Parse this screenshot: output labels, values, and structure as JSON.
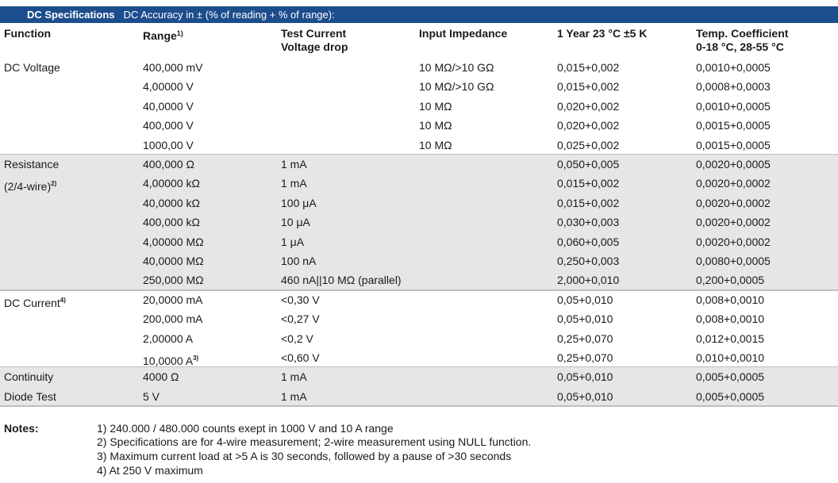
{
  "title": {
    "main": "DC Specifications",
    "subtitle": "DC Accuracy in ± (% of reading + % of range):"
  },
  "headers": {
    "function": "Function",
    "range": "Range",
    "range_sup": "1)",
    "test_current_line1": "Test Current",
    "test_current_line2": "Voltage drop",
    "input_impedance": "Input Impedance",
    "one_year": "1 Year 23 °C ±5 K",
    "temp_line1": "Temp. Coefficient",
    "temp_line2": "0-18 °C, 28-55 °C"
  },
  "groups": [
    {
      "shaded": false,
      "rows": [
        {
          "function": "DC Voltage",
          "fsup": "",
          "range": "400,000 mV",
          "rsup": "",
          "test": "",
          "impedance": "10 MΩ/>10 GΩ",
          "year": "0,015+0,002",
          "temp": "0,0010+0,0005"
        },
        {
          "function": "",
          "fsup": "",
          "range": "4,00000 V",
          "rsup": "",
          "test": "",
          "impedance": "10 MΩ/>10 GΩ",
          "year": "0,015+0,002",
          "temp": "0,0008+0,0003"
        },
        {
          "function": "",
          "fsup": "",
          "range": "40,0000 V",
          "rsup": "",
          "test": "",
          "impedance": "10 MΩ",
          "year": "0,020+0,002",
          "temp": "0,0010+0,0005"
        },
        {
          "function": "",
          "fsup": "",
          "range": "400,000 V",
          "rsup": "",
          "test": "",
          "impedance": "10 MΩ",
          "year": "0,020+0,002",
          "temp": "0,0015+0,0005"
        },
        {
          "function": "",
          "fsup": "",
          "range": "1000,00 V",
          "rsup": "",
          "test": "",
          "impedance": "10 MΩ",
          "year": "0,025+0,002",
          "temp": "0,0015+0,0005"
        }
      ]
    },
    {
      "shaded": true,
      "rows": [
        {
          "function": "Resistance",
          "fsup": "",
          "range": "400,000 Ω",
          "rsup": "",
          "test": "1 mA",
          "impedance": "",
          "year": "0,050+0,005",
          "temp": "0,0020+0,0005"
        },
        {
          "function": "(2/4-wire)",
          "fsup": "2)",
          "range": "4,00000 kΩ",
          "rsup": "",
          "test": "1 mA",
          "impedance": "",
          "year": "0,015+0,002",
          "temp": "0,0020+0,0002"
        },
        {
          "function": "",
          "fsup": "",
          "range": "40,0000 kΩ",
          "rsup": "",
          "test": "100 μA",
          "impedance": "",
          "year": "0,015+0,002",
          "temp": "0,0020+0,0002"
        },
        {
          "function": "",
          "fsup": "",
          "range": "400,000 kΩ",
          "rsup": "",
          "test": "10 μA",
          "impedance": "",
          "year": "0,030+0,003",
          "temp": "0,0020+0,0002"
        },
        {
          "function": "",
          "fsup": "",
          "range": "4,00000 MΩ",
          "rsup": "",
          "test": "1 μA",
          "impedance": "",
          "year": "0,060+0,005",
          "temp": "0,0020+0,0002"
        },
        {
          "function": "",
          "fsup": "",
          "range": "40,0000 MΩ",
          "rsup": "",
          "test": "100 nA",
          "impedance": "",
          "year": "0,250+0,003",
          "temp": "0,0080+0,0005"
        },
        {
          "function": "",
          "fsup": "",
          "range": "250,000 MΩ",
          "rsup": "",
          "test": "460 nA||10 MΩ (parallel)",
          "impedance": "",
          "year": "2,000+0,010",
          "temp": "0,200+0,0005"
        }
      ]
    },
    {
      "shaded": false,
      "rows": [
        {
          "function": "DC Current",
          "fsup": "4)",
          "range": "20,0000 mA",
          "rsup": "",
          "test": "<0,30 V",
          "impedance": "",
          "year": "0,05+0,010",
          "temp": "0,008+0,0010"
        },
        {
          "function": "",
          "fsup": "",
          "range": "200,000 mA",
          "rsup": "",
          "test": "<0,27 V",
          "impedance": "",
          "year": "0,05+0,010",
          "temp": "0,008+0,0010"
        },
        {
          "function": "",
          "fsup": "",
          "range": "2,00000 A",
          "rsup": "",
          "test": "<0,2 V",
          "impedance": "",
          "year": "0,25+0,070",
          "temp": "0,012+0,0015"
        },
        {
          "function": "",
          "fsup": "",
          "range": "10,0000 A",
          "rsup": "3)",
          "test": "<0,60 V",
          "impedance": "",
          "year": "0,25+0,070",
          "temp": "0,010+0,0010"
        }
      ]
    },
    {
      "shaded": true,
      "rows": [
        {
          "function": "Continuity",
          "fsup": "",
          "range": "4000 Ω",
          "rsup": "",
          "test": "1 mA",
          "impedance": "",
          "year": "0,05+0,010",
          "temp": "0,005+0,0005"
        },
        {
          "function": "Diode Test",
          "fsup": "",
          "range": "5 V",
          "rsup": "",
          "test": "1 mA",
          "impedance": "",
          "year": "0,05+0,010",
          "temp": "0,005+0,0005"
        }
      ]
    }
  ],
  "notes": {
    "label": "Notes:",
    "items": [
      "1) 240.000 / 480.000 counts exept in 1000 V and 10 A range",
      "2) Specifications are for 4-wire measurement; 2-wire measurement using NULL function.",
      "3) Maximum current load at >5 A is 30 seconds, followed by a pause of >30 seconds",
      "4) At 250 V maximum"
    ]
  }
}
